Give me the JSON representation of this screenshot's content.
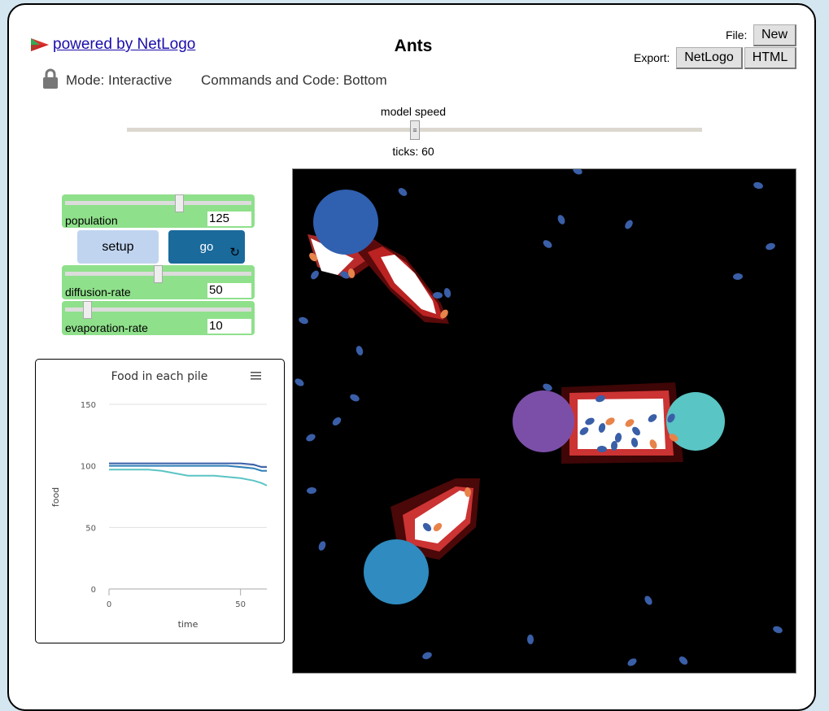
{
  "header": {
    "powered_by": "powered by NetLogo",
    "title": "Ants",
    "file_label": "File:",
    "new_button": "New",
    "export_label": "Export:",
    "export_netlogo": "NetLogo",
    "export_html": "HTML"
  },
  "mode": {
    "mode_text": "Mode: Interactive",
    "commands_text": "Commands and Code: Bottom"
  },
  "speed": {
    "label": "model speed",
    "ticks": "ticks: 60"
  },
  "widgets": {
    "population": {
      "label": "population",
      "value": "125"
    },
    "setup": "setup",
    "go": "go",
    "diffusion": {
      "label": "diffusion-rate",
      "value": "50"
    },
    "evaporation": {
      "label": "evaporation-rate",
      "value": "10"
    }
  },
  "chart_data": {
    "type": "line",
    "title": "Food in each pile",
    "xlabel": "time",
    "ylabel": "food",
    "xlim": [
      0,
      60
    ],
    "ylim": [
      0,
      150
    ],
    "xticks": [
      "0",
      "50"
    ],
    "yticks": [
      "0",
      "50",
      "100",
      "150"
    ],
    "colors": [
      "#3a5fa8",
      "#2e7fb8",
      "#5bc4c4"
    ],
    "series": [
      {
        "x": [
          0,
          35,
          40,
          45,
          50,
          55,
          58,
          60
        ],
        "values": [
          102,
          102,
          102,
          102,
          102,
          101,
          99,
          99
        ]
      },
      {
        "x": [
          0,
          35,
          40,
          45,
          50,
          55,
          58,
          60
        ],
        "values": [
          100,
          100,
          100,
          100,
          99,
          98,
          96,
          96
        ]
      },
      {
        "x": [
          0,
          15,
          20,
          25,
          30,
          35,
          40,
          45,
          50,
          55,
          58,
          60
        ],
        "values": [
          97,
          97,
          96,
          94,
          92,
          92,
          92,
          91,
          90,
          88,
          86,
          84
        ]
      }
    ]
  }
}
